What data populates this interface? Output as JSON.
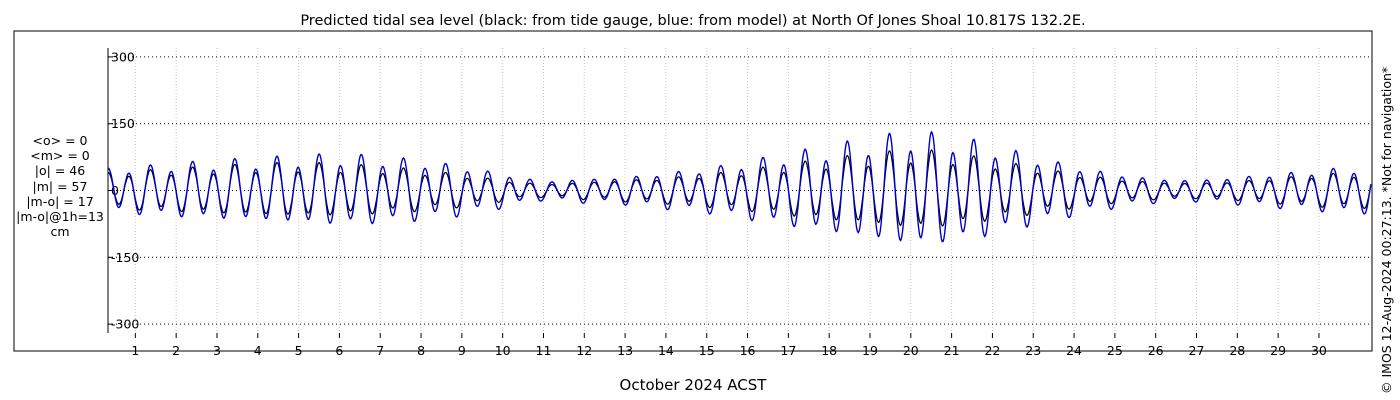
{
  "chart_data": {
    "type": "line",
    "title": "Predicted tidal sea level (black: from tide gauge, blue: from model) at North Of Jones Shoal 10.817S 132.2E.",
    "xlabel": "October 2024 ACST",
    "ylabel": "",
    "xlim": [
      0.33,
      31.3
    ],
    "ylim": [
      -320,
      320
    ],
    "grid": true,
    "x_ticks": [
      "1",
      "2",
      "3",
      "4",
      "5",
      "6",
      "7",
      "8",
      "9",
      "10",
      "11",
      "12",
      "13",
      "14",
      "15",
      "16",
      "17",
      "18",
      "19",
      "20",
      "21",
      "22",
      "23",
      "24",
      "25",
      "26",
      "27",
      "28",
      "29",
      "30"
    ],
    "y_ticks": [
      300,
      150,
      0,
      -150,
      -300
    ],
    "y_tick_labels": [
      "300",
      "150",
      "0",
      "-150",
      "-300"
    ],
    "series": [
      {
        "name": "black: from tide gauge",
        "color": "#000000",
        "amplitude_cm": [
          40,
          45,
          50,
          55,
          60,
          62,
          60,
          55,
          48,
          38,
          25,
          15,
          20,
          25,
          30,
          38,
          48,
          60,
          72,
          82,
          92,
          86,
          70,
          55,
          40,
          28,
          20,
          18,
          22,
          30,
          38,
          42
        ]
      },
      {
        "name": "blue: from model",
        "color": "#0000cc",
        "amplitude_cm": [
          50,
          55,
          62,
          68,
          72,
          78,
          82,
          78,
          70,
          58,
          40,
          22,
          28,
          32,
          42,
          52,
          68,
          85,
          100,
          118,
          132,
          125,
          105,
          80,
          58,
          40,
          28,
          25,
          32,
          40,
          48,
          55
        ]
      }
    ]
  },
  "stats": {
    "mean_obs": "<o> = 0",
    "mean_model": "<m> = 0",
    "abs_obs": "|o| = 46",
    "abs_model": "|m| = 57",
    "abs_diff": "|m-o| = 17",
    "abs_diff_1h": "|m-o|@1h=13",
    "unit": "cm"
  },
  "footer": {
    "copyright": "© IMOS 12-Aug-2024 00:27:13. *Not for navigation*"
  }
}
